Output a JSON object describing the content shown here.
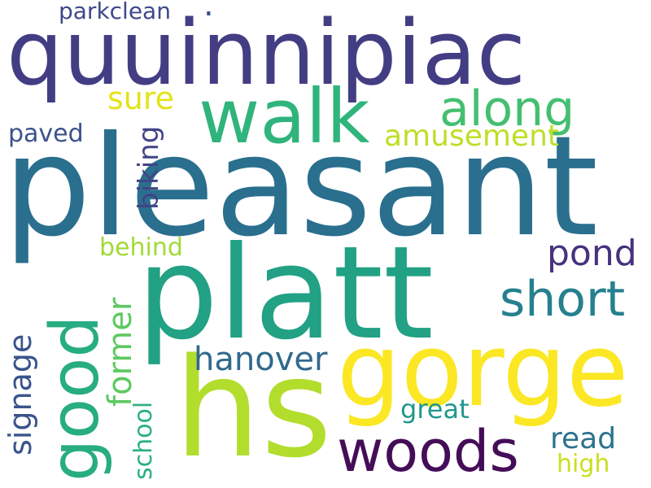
{
  "cloud": {
    "words": {
      "pleasant": {
        "text": "pleasant",
        "color": "#2a6f8e"
      },
      "platt": {
        "text": "platt",
        "color": "#22a184"
      },
      "quuinnipiac": {
        "text": "quuinnipiac",
        "color": "#433d84"
      },
      "hs": {
        "text": "hs",
        "color": "#b2dd2d"
      },
      "gorge": {
        "text": "gorge",
        "color": "#fbe723"
      },
      "walk": {
        "text": "walk",
        "color": "#2fb47c"
      },
      "good": {
        "text": "good",
        "color": "#27ad81"
      },
      "woods": {
        "text": "woods",
        "color": "#450d58"
      },
      "along": {
        "text": "along",
        "color": "#44bf70"
      },
      "short": {
        "text": "short",
        "color": "#26808e"
      },
      "hanover": {
        "text": "hanover",
        "color": "#30698e"
      },
      "pond": {
        "text": "pond",
        "color": "#46327e"
      },
      "signage": {
        "text": "signage",
        "color": "#3a548c"
      },
      "former": {
        "text": "former",
        "color": "#5ec962"
      },
      "read": {
        "text": "read",
        "color": "#2c728e"
      },
      "amusement": {
        "text": "amusement",
        "color": "#bddf26"
      },
      "sure": {
        "text": "sure",
        "color": "#e2e418"
      },
      "biking": {
        "text": "biking",
        "color": "#414487"
      },
      "paved": {
        "text": "paved",
        "color": "#3b528b"
      },
      "parkclean": {
        "text": "parkclean",
        "color": "#3e4989"
      },
      "behind": {
        "text": "behind",
        "color": "#a2da37"
      },
      "great": {
        "text": "great",
        "color": "#1f988b"
      },
      "school": {
        "text": "school",
        "color": "#2ab07f"
      },
      "high": {
        "text": "high",
        "color": "#c8e020"
      },
      "dot": {
        "text": ".",
        "color": "#3b528b"
      }
    }
  }
}
